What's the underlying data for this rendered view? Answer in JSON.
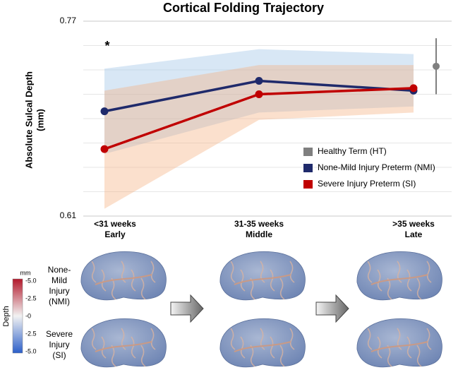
{
  "chart_data": {
    "type": "line",
    "title": "Cortical Folding Trajectory",
    "ylabel": [
      "Absolute Sulcal Depth",
      "(mm)"
    ],
    "categories": [
      "<31 weeks",
      "31-35 weeks",
      ">35 weeks"
    ],
    "category_sublabels": [
      "Early",
      "Middle",
      "Late"
    ],
    "ylim": [
      0.61,
      0.77
    ],
    "yticks": [
      0.61,
      0.77
    ],
    "minor_yticks": [
      0.63,
      0.65,
      0.67,
      0.69,
      0.71,
      0.73,
      0.75
    ],
    "grid": true,
    "annotation": "*",
    "reference": {
      "name": "Healthy Term (HT)",
      "color": "#7f7f7f",
      "value": 0.733,
      "error": 0.023
    },
    "series": [
      {
        "name": "None-Mild Injury Preterm (NMI)",
        "color": "#1f2a6b",
        "band_color": "#9dc3e6",
        "values": [
          0.696,
          0.721,
          0.713
        ],
        "band_upper": [
          0.731,
          0.747,
          0.743
        ],
        "band_lower": [
          0.661,
          0.695,
          0.7
        ]
      },
      {
        "name": "Severe Injury Preterm (SI)",
        "color": "#c00000",
        "band_color": "#f4b183",
        "values": [
          0.665,
          0.71,
          0.715
        ],
        "band_upper": [
          0.713,
          0.734,
          0.734
        ],
        "band_lower": [
          0.616,
          0.689,
          0.695
        ]
      }
    ],
    "rows": [
      [
        "None-",
        "Mild",
        "Injury",
        "(NMI)"
      ],
      [
        "Severe",
        "Injury",
        "(SI)"
      ]
    ],
    "colorbar": {
      "unit": "mm",
      "label": "Depth",
      "ticks": [
        "-5.0",
        "-2.5",
        "-0",
        "-2.5",
        "-5.0"
      ]
    }
  }
}
